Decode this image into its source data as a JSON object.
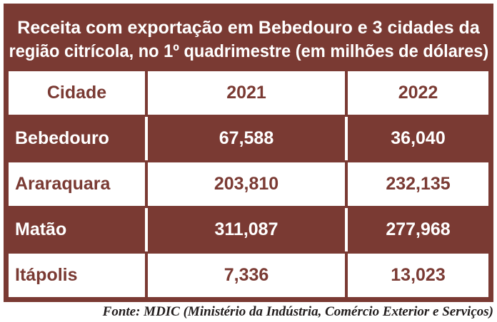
{
  "title": {
    "full": "Receita com exportação em Bebedouro e 3 cidades da região citrícola, no 1º quadrimestre (em milhões de dólares)",
    "line1": "Receita com exportação em Bebedouro e 3 cidades da",
    "line2": "região citrícola, no 1º quadrimestre (em milhões de dólares)"
  },
  "table": {
    "columns": [
      "Cidade",
      "2021",
      "2022"
    ],
    "rows": [
      {
        "city": "Bebedouro",
        "v2021": "67,588",
        "v2022": "36,040"
      },
      {
        "city": "Araraquara",
        "v2021": "203,810",
        "v2022": "232,135"
      },
      {
        "city": "Matão",
        "v2021": "311,087",
        "v2022": "277,968"
      },
      {
        "city": "Itápolis",
        "v2021": "7,336",
        "v2022": "13,023"
      }
    ]
  },
  "source": "Fonte: MDIC (Ministério da Indústria, Comércio Exterior e Serviços)",
  "colors": {
    "maroon": "#7a3a33",
    "cell_white": "#ffffff",
    "footer_text": "#221d1d"
  },
  "chart_data": {
    "type": "table",
    "title": "Receita com exportação em Bebedouro e 3 cidades da região citrícola, no 1º quadrimestre (em milhões de dólares)",
    "unit": "milhões de dólares",
    "categories": [
      "Bebedouro",
      "Araraquara",
      "Matão",
      "Itápolis"
    ],
    "series": [
      {
        "name": "2021",
        "values": [
          67.588,
          203.81,
          311.087,
          7.336
        ]
      },
      {
        "name": "2022",
        "values": [
          36.04,
          232.135,
          277.968,
          13.023
        ]
      }
    ],
    "source": "Fonte: MDIC (Ministério da Indústria, Comércio Exterior e Serviços)"
  }
}
